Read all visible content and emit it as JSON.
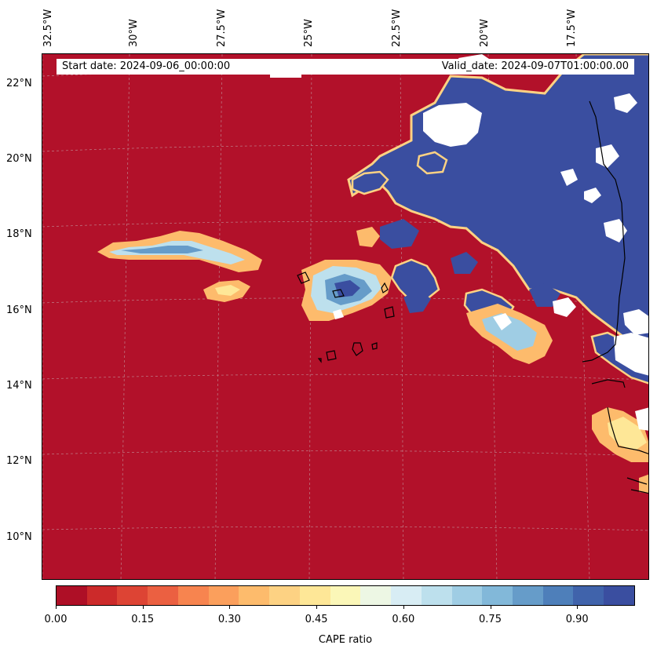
{
  "map": {
    "start_date": "Start date: 2024-09-06_00:00:00",
    "valid_date": "Valid_date: 2024-09-07T01:00:00.00",
    "lon_labels": [
      "32.5°W",
      "30°W",
      "27.5°W",
      "25°W",
      "22.5°W",
      "20°W",
      "17.5°W"
    ],
    "lat_labels": [
      "22°N",
      "20°N",
      "18°N",
      "16°N",
      "14°N",
      "12°N",
      "10°N"
    ],
    "field": "CAPE ratio",
    "colors": {
      "low": "#b2112a",
      "high": "#3a4ea0",
      "missing": "#ffffff",
      "coastline": "#000000"
    }
  },
  "colorbar": {
    "label": "CAPE ratio",
    "ticks": [
      "0.00",
      "0.15",
      "0.30",
      "0.45",
      "0.60",
      "0.75",
      "0.90"
    ],
    "colors": [
      "#ae0f26",
      "#cc2a2a",
      "#dd4434",
      "#eb6041",
      "#f7844f",
      "#fb9f5c",
      "#fdbb6c",
      "#fdd283",
      "#fee797",
      "#fbf7b8",
      "#edf7e4",
      "#d8edf4",
      "#bde0ed",
      "#9fcde4",
      "#82b8d9",
      "#669cc9",
      "#4e7fba",
      "#4063ab",
      "#3a4ea0"
    ]
  }
}
